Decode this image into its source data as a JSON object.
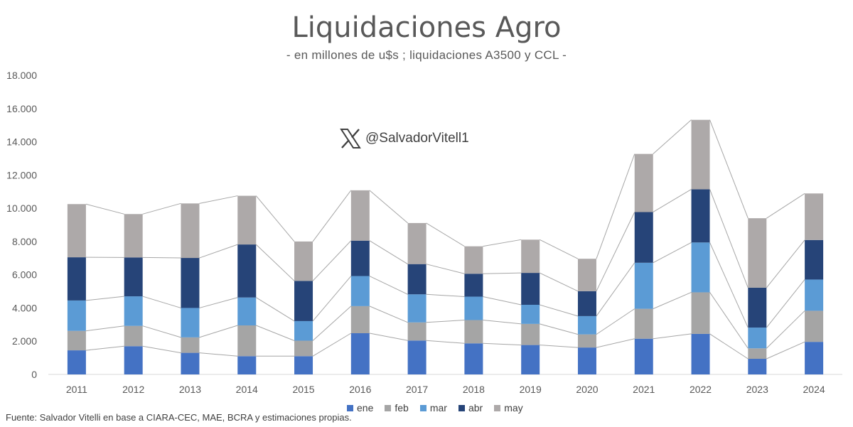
{
  "chart_data": {
    "type": "bar",
    "stacked": true,
    "title": "Liquidaciones Agro",
    "subtitle": "- en millones de u$s ; liquidaciones A3500 y CCL -",
    "watermark": "@SalvadorVitell1",
    "source": "Fuente: Salvador Vitelli en base a CIARA-CEC, MAE, BCRA y estimaciones propias.",
    "categories": [
      "2011",
      "2012",
      "2013",
      "2014",
      "2015",
      "2016",
      "2017",
      "2018",
      "2019",
      "2020",
      "2021",
      "2022",
      "2023",
      "2024"
    ],
    "ylim": [
      0,
      18000
    ],
    "yticks": [
      0,
      2000,
      4000,
      6000,
      8000,
      10000,
      12000,
      14000,
      16000,
      18000
    ],
    "ytick_labels": [
      "0",
      "2.000",
      "4.000",
      "6.000",
      "8.000",
      "10.000",
      "12.000",
      "14.000",
      "16.000",
      "18.000"
    ],
    "grid": false,
    "series_lines": true,
    "legend_position": "bottom",
    "series": [
      {
        "name": "ene",
        "color": "#4472C4",
        "values": [
          1450,
          1700,
          1300,
          1100,
          1100,
          2480,
          2040,
          1870,
          1770,
          1620,
          2150,
          2440,
          940,
          1960
        ]
      },
      {
        "name": "feb",
        "color": "#A5A5A5",
        "values": [
          1170,
          1220,
          930,
          1850,
          930,
          1630,
          1090,
          1400,
          1270,
          790,
          1800,
          2500,
          630,
          1870
        ]
      },
      {
        "name": "mar",
        "color": "#5B9BD5",
        "values": [
          1830,
          1780,
          1770,
          1680,
          1180,
          1810,
          1690,
          1410,
          1150,
          1100,
          2770,
          3000,
          1250,
          1880
        ]
      },
      {
        "name": "abr",
        "color": "#264478",
        "values": [
          2600,
          2340,
          3010,
          3190,
          2420,
          2130,
          1820,
          1380,
          1920,
          1500,
          3050,
          3200,
          2400,
          2380
        ]
      },
      {
        "name": "may",
        "color": "#ADA9A9",
        "values": [
          3200,
          2610,
          3280,
          2930,
          2370,
          3030,
          2470,
          1650,
          2000,
          1950,
          3500,
          4180,
          4180,
          2800
        ]
      }
    ]
  }
}
